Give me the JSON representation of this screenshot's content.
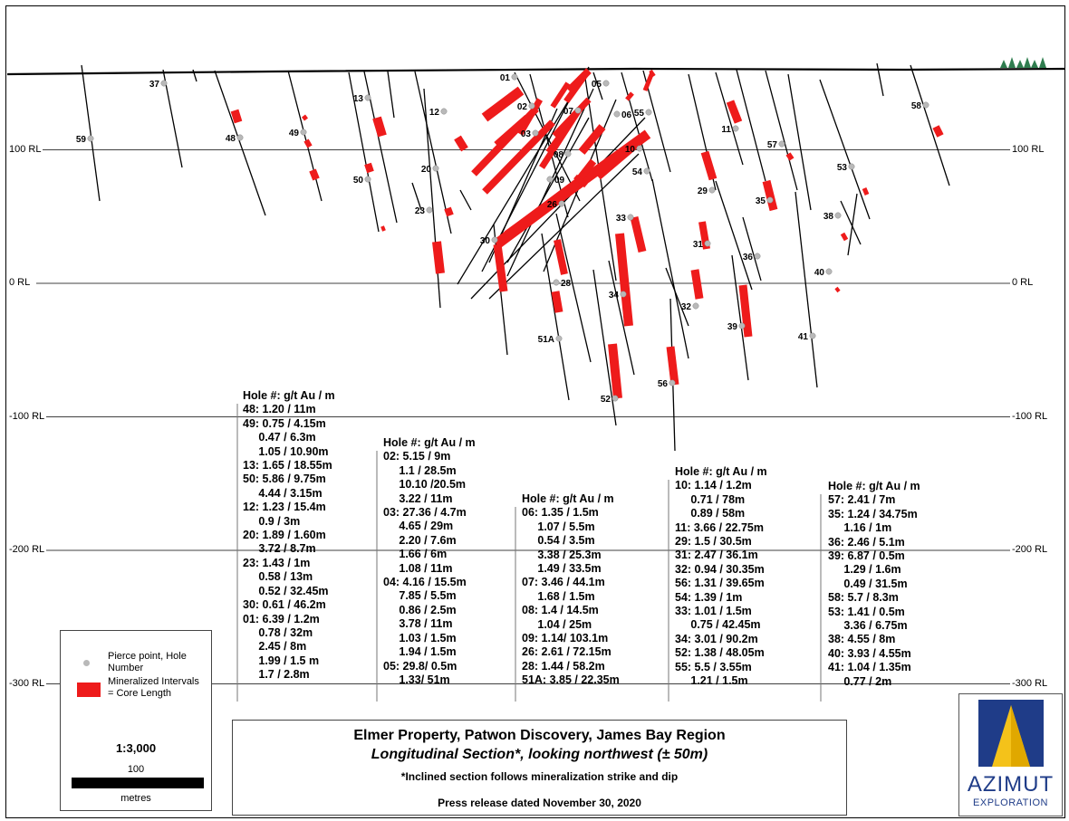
{
  "levels": [
    {
      "label": "100 RL",
      "rl": 100,
      "show_left": true,
      "show_right": true
    },
    {
      "label": "0 RL",
      "rl": 0,
      "show_left": true,
      "show_right": true
    },
    {
      "label": "-100 RL",
      "rl": -100,
      "show_left": true,
      "show_right": true
    },
    {
      "label": "-200 RL",
      "rl": -200,
      "show_left": true,
      "show_right": true
    },
    {
      "label": "-300 RL",
      "rl": -300,
      "show_left": true,
      "show_right": true
    }
  ],
  "holes": [
    "59",
    "37",
    "48",
    "49",
    "13",
    "50",
    "12",
    "20",
    "23",
    "30",
    "01",
    "02",
    "03",
    "07",
    "05",
    "06",
    "55",
    "08",
    "09",
    "26",
    "10",
    "54",
    "33",
    "31",
    "29",
    "11",
    "57",
    "35",
    "36",
    "53",
    "38",
    "40",
    "58",
    "28",
    "34",
    "32",
    "39",
    "41",
    "51A",
    "52",
    "56"
  ],
  "assays": [
    {
      "header": "Hole #: g/t Au / m",
      "rows": [
        "48: 1.20 / 11m",
        "49: 0.75 / 4.15m",
        "     0.47 / 6.3m",
        "     1.05 / 10.90m",
        "13: 1.65 / 18.55m",
        "50: 5.86 / 9.75m",
        "     4.44 / 3.15m",
        "12: 1.23 / 15.4m",
        "     0.9 / 3m",
        "20: 1.89 / 1.60m",
        "     3.72 / 8.7m",
        "23: 1.43 / 1m",
        "     0.58 / 13m",
        "     0.52 / 32.45m",
        "30: 0.61 / 46.2m",
        "01: 6.39 / 1.2m",
        "     0.78 / 32m",
        "     2.45 / 8m",
        "     1.99 / 1.5 m",
        "     1.7 / 2.8m"
      ]
    },
    {
      "header": "Hole #: g/t Au / m",
      "rows": [
        "02: 5.15 / 9m",
        "     1.1 / 28.5m",
        "     10.10 /20.5m",
        "     3.22 / 11m",
        "03: 27.36 / 4.7m",
        "     4.65 / 29m",
        "     2.20 / 7.6m",
        "     1.66 / 6m",
        "     1.08 / 11m",
        "04: 4.16 / 15.5m",
        "     7.85 / 5.5m",
        "     0.86 / 2.5m",
        "     3.78 / 11m",
        "     1.03 / 1.5m",
        "     1.94 / 1.5m",
        "05: 29.8/ 0.5m",
        "     1.33/ 51m"
      ]
    },
    {
      "header": "Hole #: g/t Au / m",
      "rows": [
        "06: 1.35 / 1.5m",
        "     1.07 / 5.5m",
        "     0.54 / 3.5m",
        "     3.38 / 25.3m",
        "     1.49 / 33.5m",
        "07: 3.46 / 44.1m",
        "     1.68 / 1.5m",
        "08: 1.4 / 14.5m",
        "     1.04 / 25m",
        "09: 1.14/ 103.1m",
        "26: 2.61 / 72.15m",
        "28: 1.44 / 58.2m",
        "51A: 3.85 / 22.35m"
      ]
    },
    {
      "header": "Hole #: g/t Au / m",
      "rows": [
        "10: 1.14 / 1.2m",
        "     0.71 / 78m",
        "     0.89 / 58m",
        "11: 3.66 / 22.75m",
        "29: 1.5 / 30.5m",
        "31: 2.47 / 36.1m",
        "32: 0.94 / 30.35m",
        "56: 1.31 / 39.65m",
        "54: 1.39 / 1m",
        "33: 1.01 / 1.5m",
        "     0.75 / 42.45m",
        "34: 3.01 / 90.2m",
        "52: 1.38 / 48.05m",
        "55: 5.5 / 3.55m",
        "     1.21 / 1.5m"
      ]
    },
    {
      "header": "Hole #: g/t Au / m",
      "rows": [
        "57: 2.41 / 7m",
        "35: 1.24 / 34.75m",
        "     1.16 / 1m",
        "36: 2.46 / 5.1m",
        "39: 6.87 / 0.5m",
        "     1.29 / 1.6m",
        "     0.49 / 31.5m",
        "58: 5.7 / 8.3m",
        "53: 1.41 / 0.5m",
        "     3.36 / 6.75m",
        "38: 4.55 / 8m",
        "40: 3.93 / 4.55m",
        "41: 1.04 / 1.35m",
        "     0.77 / 2m"
      ]
    }
  ],
  "legend": {
    "pierce_point": "Pierce point, Hole Number",
    "mineralized": "Mineralized Intervals = Core Length",
    "scale": "1:3,000",
    "bar_length": "100",
    "bar_unit": "metres"
  },
  "title": {
    "line1": "Elmer Property, Patwon Discovery, James Bay Region",
    "line2": "Longitudinal Section*, looking northwest (± 50m)",
    "note": "*Inclined section follows mineralization strike and dip",
    "release": "Press release dated November 30, 2020"
  },
  "logo": {
    "word": "AZIMUT",
    "sub": "EXPLORATION"
  },
  "colors": {
    "mineralized": "#ee1b1b",
    "pierce_point": "#b9b9b9",
    "trees": "#2f7d4f",
    "logo_blue": "#1f3c88",
    "logo_gold": "#f4c21a"
  }
}
